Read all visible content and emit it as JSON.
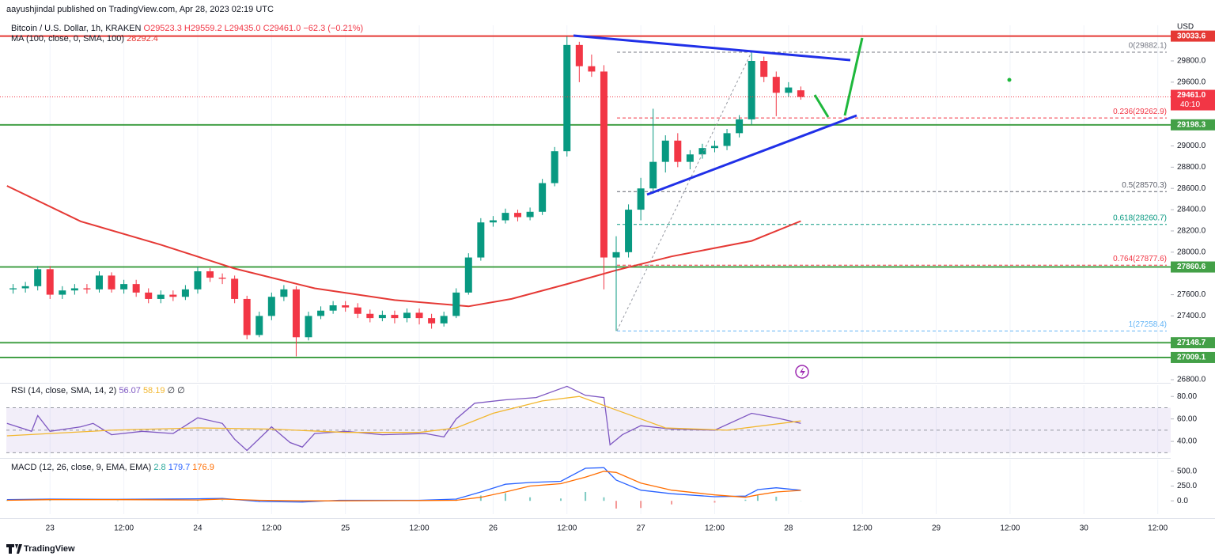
{
  "header": {
    "publisher": "aayushjindal published on TradingView.com, Apr 28, 2023 02:19 UTC"
  },
  "footer": {
    "brand": "TradingView"
  },
  "chart_data": [
    {
      "type": "candlestick",
      "title": "Bitcoin / U.S. Dollar, 1h, KRAKEN",
      "ohlc_label": "O29523.3 H29559.2 L29435.0 C29461.0 −62.3 (−0.21%)",
      "currency": "USD",
      "up_color": "#089981",
      "down_color": "#f23645",
      "x": [
        -6,
        -4,
        -2,
        0,
        2,
        4,
        6,
        8,
        10,
        12,
        14,
        16,
        18,
        20,
        22,
        24,
        26,
        28,
        30,
        32,
        34,
        36,
        38,
        40,
        42,
        44,
        46,
        48,
        50,
        52,
        54,
        56,
        58,
        60,
        62,
        64,
        66,
        68,
        70,
        72,
        74,
        76,
        78,
        80,
        82,
        84,
        86,
        88,
        90,
        92,
        94,
        96,
        98,
        100,
        102,
        104,
        106,
        108,
        110,
        112,
        114,
        116,
        118,
        120,
        122
      ],
      "open": [
        27650,
        27660,
        27680,
        27840,
        27600,
        27640,
        27660,
        27650,
        27780,
        27650,
        27700,
        27620,
        27560,
        27600,
        27580,
        27650,
        27820,
        27760,
        27750,
        27560,
        27220,
        27400,
        27580,
        27650,
        27200,
        27400,
        27450,
        27500,
        27480,
        27420,
        27380,
        27410,
        27380,
        27430,
        27380,
        27330,
        27400,
        27620,
        27950,
        28280,
        28300,
        28370,
        28330,
        28380,
        28650,
        28950,
        29950,
        29750,
        29700,
        27950,
        28000,
        28400,
        28600,
        28850,
        29050,
        28850,
        28920,
        28980,
        29000,
        29120,
        29250,
        29800,
        29650,
        29500,
        29523.3
      ],
      "high": [
        27700,
        27720,
        27870,
        27870,
        27680,
        27700,
        27700,
        27820,
        27810,
        27740,
        27740,
        27660,
        27640,
        27640,
        27690,
        27860,
        27850,
        27800,
        27780,
        27590,
        27440,
        27620,
        27690,
        27680,
        27440,
        27490,
        27540,
        27540,
        27520,
        27460,
        27450,
        27450,
        27470,
        27470,
        27420,
        27440,
        27660,
        27990,
        28320,
        28340,
        28410,
        28400,
        28420,
        28690,
        28990,
        30030,
        29980,
        29860,
        29760,
        28150,
        28450,
        28700,
        29350,
        29100,
        29120,
        28960,
        29020,
        29050,
        29160,
        29290,
        29882.1,
        29840,
        29700,
        29600,
        29559.2
      ],
      "low": [
        27610,
        27620,
        27640,
        27560,
        27560,
        27600,
        27610,
        27620,
        27620,
        27610,
        27580,
        27520,
        27520,
        27540,
        27550,
        27610,
        27720,
        27700,
        27520,
        27180,
        27200,
        27360,
        27540,
        27020,
        27170,
        27370,
        27420,
        27440,
        27380,
        27340,
        27350,
        27330,
        27340,
        27320,
        27280,
        27300,
        27380,
        27600,
        27920,
        28240,
        28270,
        28290,
        28300,
        28350,
        28620,
        28900,
        29600,
        29650,
        27650,
        27258.4,
        27950,
        28300,
        28550,
        28750,
        28800,
        28780,
        28880,
        28940,
        28960,
        29080,
        29200,
        29600,
        29280,
        29460,
        29435.0
      ],
      "close": [
        27660,
        27680,
        27840,
        27600,
        27640,
        27660,
        27650,
        27780,
        27650,
        27700,
        27620,
        27560,
        27600,
        27580,
        27650,
        27820,
        27760,
        27750,
        27560,
        27220,
        27400,
        27580,
        27650,
        27200,
        27400,
        27450,
        27500,
        27480,
        27420,
        27380,
        27410,
        27380,
        27430,
        27380,
        27330,
        27400,
        27620,
        27950,
        28280,
        28300,
        28370,
        28330,
        28380,
        28650,
        28950,
        29950,
        29750,
        29700,
        27950,
        28000,
        28400,
        28600,
        28850,
        29050,
        28850,
        28920,
        28980,
        29000,
        29120,
        29250,
        29800,
        29650,
        29500,
        29550,
        29461.0
      ],
      "ma": {
        "name": "MA (100, close, 0, SMA, 100)",
        "color": "#e53935",
        "x": [
          -7,
          5,
          18,
          30,
          43,
          56,
          68,
          75,
          84,
          92,
          101,
          114,
          122
        ],
        "values": [
          28624,
          28290,
          28070,
          27846,
          27660,
          27549,
          27490,
          27560,
          27700,
          27830,
          27960,
          28106,
          28292.4
        ]
      },
      "last_price": {
        "value": 29461.0,
        "label": "29461.0",
        "color": "#f23645"
      },
      "countdown": "40:10",
      "price_lines": [
        {
          "value": 30033.6,
          "label": "30033.6",
          "color": "#e53935"
        },
        {
          "value": 29198.3,
          "label": "29198.3",
          "color": "#43a047"
        },
        {
          "value": 27860.6,
          "label": "27860.6",
          "color": "#43a047"
        },
        {
          "value": 27148.7,
          "label": "27148.7",
          "color": "#43a047"
        },
        {
          "value": 27009.1,
          "label": "27009.1",
          "color": "#43a047"
        }
      ],
      "fib_levels": [
        {
          "value": 29882.1,
          "label": "0(29882.1)",
          "color": "#787b86"
        },
        {
          "value": 29262.9,
          "label": "0.236(29262.9)",
          "color": "#f23645"
        },
        {
          "value": 28570.3,
          "label": "0.5(28570.3)",
          "color": "#5d606b"
        },
        {
          "value": 28260.7,
          "label": "0.618(28260.7)",
          "color": "#089981"
        },
        {
          "value": 27877.6,
          "label": "0.764(27877.6)",
          "color": "#f23645"
        },
        {
          "value": 27258.4,
          "label": "1(27258.4)",
          "color": "#64b5f6"
        }
      ],
      "xlim": [
        -7.1,
        182.1
      ],
      "xticks": [
        {
          "value": 0,
          "label": "23"
        },
        {
          "value": 12,
          "label": "12:00"
        },
        {
          "value": 24,
          "label": "24"
        },
        {
          "value": 36,
          "label": "12:00"
        },
        {
          "value": 48,
          "label": "25"
        },
        {
          "value": 60,
          "label": "12:00"
        },
        {
          "value": 72,
          "label": "26"
        },
        {
          "value": 84,
          "label": "12:00"
        },
        {
          "value": 96,
          "label": "27"
        },
        {
          "value": 108,
          "label": "12:00"
        },
        {
          "value": 120,
          "label": "28"
        },
        {
          "value": 132,
          "label": "12:00"
        },
        {
          "value": 144,
          "label": "29"
        },
        {
          "value": 156,
          "label": "12:00"
        },
        {
          "value": 168,
          "label": "30"
        },
        {
          "value": 180,
          "label": "12:00"
        }
      ],
      "ylim": [
        26778,
        30135
      ],
      "yticks": [
        {
          "value": 29800,
          "label": "29800.0"
        },
        {
          "value": 29600,
          "label": "29600.0"
        },
        {
          "value": 29000,
          "label": "29000.0"
        },
        {
          "value": 28800,
          "label": "28800.0"
        },
        {
          "value": 28600,
          "label": "28600.0"
        },
        {
          "value": 28400,
          "label": "28400.0"
        },
        {
          "value": 28200,
          "label": "28200.0"
        },
        {
          "value": 28000,
          "label": "28000.0"
        },
        {
          "value": 27600,
          "label": "27600.0"
        },
        {
          "value": 27400,
          "label": "27400.0"
        },
        {
          "value": 26800,
          "label": "26800.0"
        }
      ]
    },
    {
      "type": "line",
      "title": "RSI (14, close, SMA, 14, 2)",
      "legend_tail": "∅ ∅",
      "band": [
        30,
        70
      ],
      "band_color": "#7e57c2",
      "series": [
        {
          "color": "#7e57c2",
          "x": [
            -7,
            -3,
            -2,
            0,
            5,
            7,
            10,
            15,
            20,
            24,
            28,
            30,
            32,
            36,
            39,
            41,
            43,
            48,
            54,
            61,
            64,
            66,
            69,
            74,
            79,
            84,
            87,
            90,
            91,
            93,
            96,
            101,
            108,
            114,
            118,
            122
          ],
          "values": [
            56,
            49,
            63,
            49,
            53,
            56,
            46,
            49,
            47,
            61,
            56,
            42,
            32,
            53,
            39,
            35,
            47,
            49,
            46,
            47,
            44,
            60,
            74,
            77,
            79,
            89,
            81,
            79,
            37,
            46,
            54,
            51,
            50,
            65,
            61,
            56.07
          ]
        },
        {
          "color": "#f2b72f",
          "x": [
            -7,
            10,
            24,
            36,
            48,
            60,
            66,
            72,
            80,
            86,
            92,
            100,
            110,
            122
          ],
          "values": [
            45,
            50,
            52,
            51,
            48,
            48,
            52,
            65,
            76,
            80,
            68,
            52,
            50,
            58.19
          ]
        }
      ],
      "ylim": [
        26,
        90
      ],
      "yticks": [
        {
          "value": 80,
          "label": "80.00"
        },
        {
          "value": 60,
          "label": "60.00"
        },
        {
          "value": 40,
          "label": "40.00"
        }
      ]
    },
    {
      "type": "macd",
      "title": "MACD (12, 26, close, 9, EMA, EMA)",
      "x": [
        -7,
        0,
        11,
        24,
        28,
        34,
        41,
        47,
        60,
        66,
        70,
        74,
        78,
        83,
        87,
        90,
        92,
        96,
        101,
        108,
        113,
        115,
        118,
        122
      ],
      "histogram": {
        "color": "#26a69a",
        "negative_color": "#ef5350",
        "values": [
          10,
          10,
          5,
          20,
          10,
          -20,
          -20,
          10,
          5,
          20,
          90,
          130,
          60,
          40,
          150,
          60,
          -130,
          -120,
          -60,
          -30,
          20,
          90,
          70,
          2.8
        ]
      },
      "series": [
        {
          "color": "#2962ff",
          "values": [
            20,
            30,
            25,
            35,
            40,
            -10,
            -20,
            10,
            10,
            30,
            150,
            280,
            310,
            330,
            550,
            560,
            350,
            180,
            120,
            70,
            80,
            190,
            220,
            179.7
          ]
        },
        {
          "color": "#ff6d00",
          "values": [
            10,
            20,
            20,
            15,
            30,
            10,
            0,
            0,
            5,
            10,
            60,
            150,
            250,
            290,
            400,
            500,
            480,
            300,
            180,
            100,
            60,
            100,
            150,
            176.9
          ]
        }
      ],
      "ylim": [
        -224,
        697
      ],
      "yticks": [
        {
          "value": 500,
          "label": "500.0"
        },
        {
          "value": 250,
          "label": "250.0"
        },
        {
          "value": 0,
          "label": "0.0"
        }
      ]
    }
  ]
}
